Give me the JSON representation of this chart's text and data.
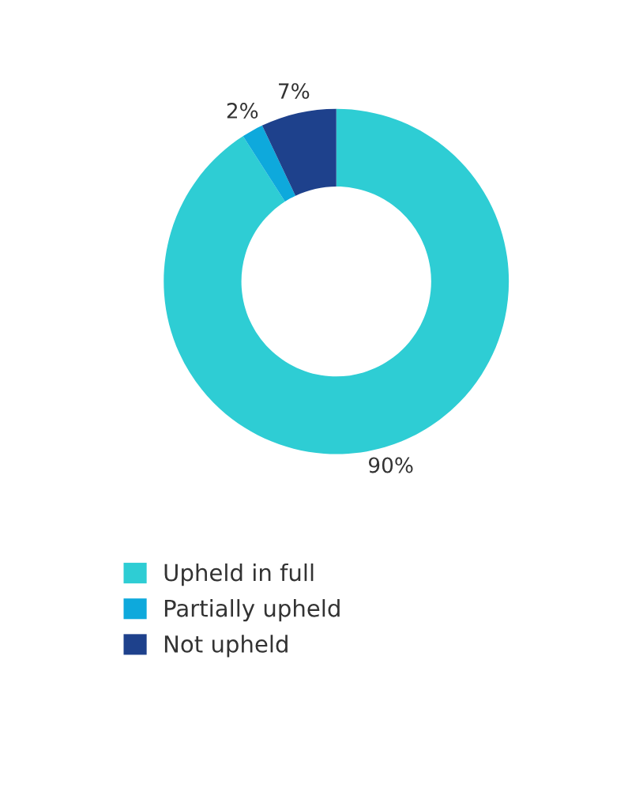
{
  "chart_data": {
    "type": "donut",
    "categories": [
      "Upheld in full",
      "Partially upheld",
      "Not upheld"
    ],
    "values": [
      90,
      2,
      7
    ],
    "colors": [
      "#2ecdd4",
      "#0ea9dc",
      "#1e418c"
    ],
    "value_labels": [
      "90%",
      "2%",
      "7%"
    ],
    "legend": "bottom left"
  }
}
